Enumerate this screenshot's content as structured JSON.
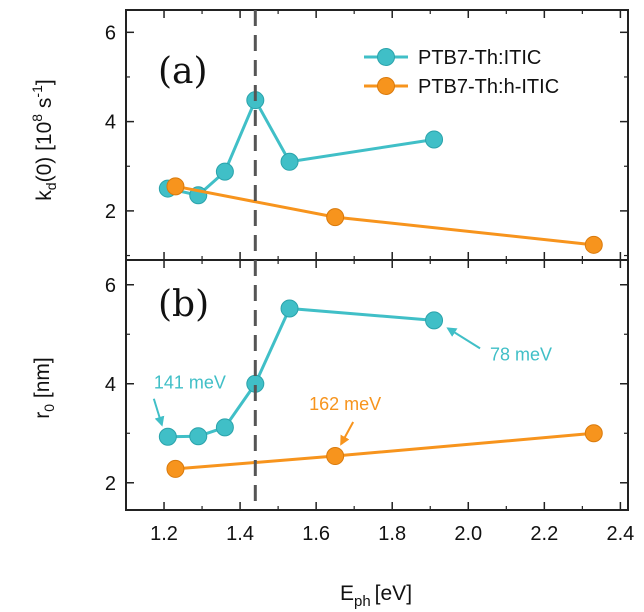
{
  "colors": {
    "series_a": "#40bfc7",
    "series_b": "#f7941d",
    "axis": "#222222",
    "vline": "#555555"
  },
  "chart_data": {
    "type": "line",
    "xlabel_main": "E",
    "xlabel_sub": "ph",
    "xlabel_unit": "[eV]",
    "xlim": [
      1.1,
      2.42
    ],
    "xticks": [
      "1.2",
      "1.4",
      "1.6",
      "1.8",
      "2.0",
      "2.2",
      "2.4"
    ],
    "xtick_values": [
      1.2,
      1.4,
      1.6,
      1.8,
      2.0,
      2.2,
      2.4
    ],
    "vline_x": 1.44,
    "legend": {
      "placement": "top-right",
      "series_names": [
        "PTB7-Th:ITIC",
        "PTB7-Th:h-ITIC"
      ]
    },
    "panels": [
      {
        "label": "(a)",
        "ylabel": "kd(0) [10⁸ s⁻¹]",
        "ylabel_k": "k",
        "ylabel_sub": "d",
        "ylabel_rest": "(0) [10",
        "ylabel_exp1": "8",
        "ylabel_mid": " s",
        "ylabel_exp2": "-1",
        "ylabel_end": "]",
        "ylim": [
          0.9,
          6.5
        ],
        "yticks": [
          "2",
          "4",
          "6"
        ],
        "ytick_values": [
          2,
          4,
          6
        ],
        "series": [
          {
            "name": "PTB7-Th:ITIC",
            "x": [
              1.21,
              1.29,
              1.36,
              1.44,
              1.53,
              1.91
            ],
            "y": [
              2.5,
              2.35,
              2.88,
              4.48,
              3.1,
              3.6
            ]
          },
          {
            "name": "PTB7-Th:h-ITIC",
            "x": [
              1.23,
              1.65,
              2.33
            ],
            "y": [
              2.55,
              1.86,
              1.24
            ]
          }
        ]
      },
      {
        "label": "(b)",
        "ylabel_main": "r",
        "ylabel_sub": "0",
        "ylabel_unit": " [nm]",
        "ylim": [
          1.45,
          6.5
        ],
        "yticks": [
          "2",
          "4",
          "6"
        ],
        "ytick_values": [
          2,
          4,
          6
        ],
        "series": [
          {
            "name": "PTB7-Th:ITIC",
            "x": [
              1.21,
              1.29,
              1.36,
              1.44,
              1.53,
              1.91
            ],
            "y": [
              2.93,
              2.94,
              3.12,
              4.0,
              5.52,
              5.28
            ]
          },
          {
            "name": "PTB7-Th:h-ITIC",
            "x": [
              1.23,
              1.65,
              2.33
            ],
            "y": [
              2.28,
              2.54,
              3.0
            ]
          }
        ],
        "annotations": [
          {
            "text": "141 meV",
            "series": 0,
            "point": 0
          },
          {
            "text": "78 meV",
            "series": 0,
            "point": 5
          },
          {
            "text": "162 meV",
            "series": 1,
            "point": 1
          }
        ]
      }
    ]
  }
}
